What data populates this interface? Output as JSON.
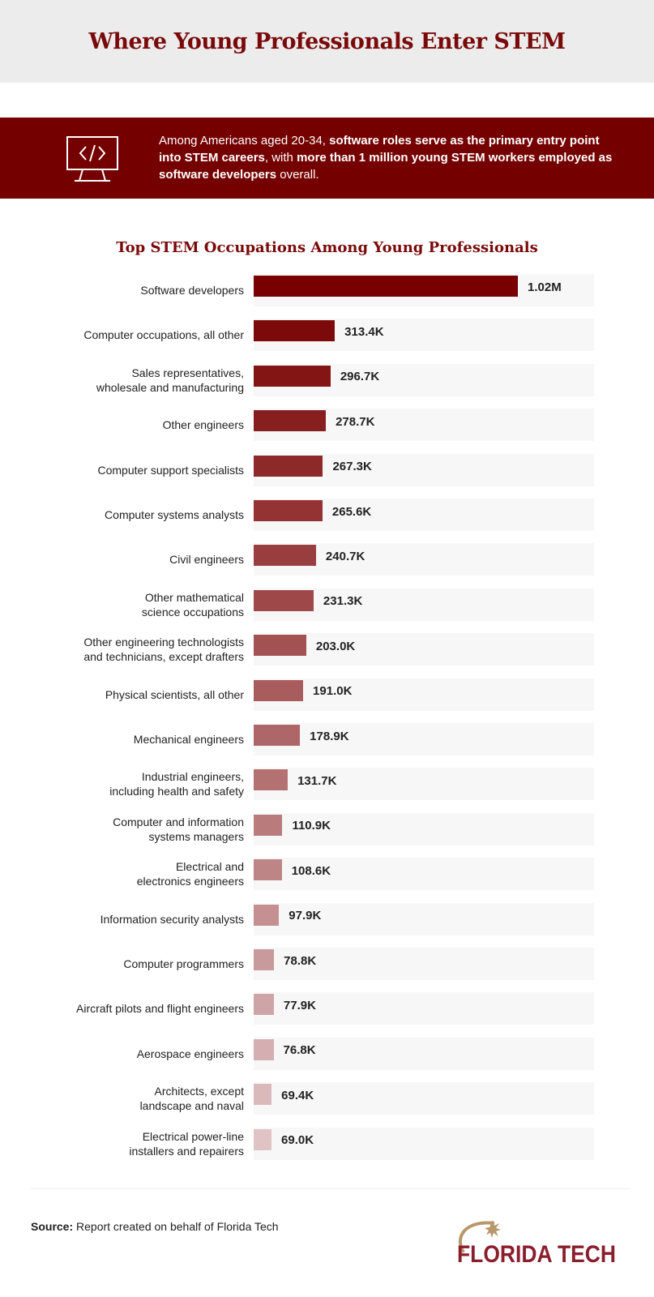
{
  "header": {
    "title": "Where Young Professionals Enter STEM"
  },
  "callout": {
    "icon": "computer-code-icon",
    "parts": [
      {
        "text": "Among Americans aged 20-34, ",
        "bold": false
      },
      {
        "text": "software roles serve as the primary entry point into STEM careers",
        "bold": true
      },
      {
        "text": ", with ",
        "bold": false
      },
      {
        "text": "more than 1 million young STEM workers employed as software developers",
        "bold": true
      },
      {
        "text": " overall.",
        "bold": false
      }
    ]
  },
  "colors": {
    "brand": "#750000",
    "bar_start": "#780000",
    "bar_end": "#dfc3c5",
    "gold": "#b8976a"
  },
  "chart_data": {
    "type": "bar",
    "orientation": "horizontal",
    "title": "Top STEM Occupations Among Young Professionals",
    "categories": [
      "Software developers",
      "Computer occupations, all other",
      "Sales representatives, wholesale and manufacturing",
      "Other engineers",
      "Computer support specialists",
      "Computer systems analysts",
      "Civil engineers",
      "Other mathematical science occupations",
      "Other engineering technologists and technicians, except drafters",
      "Physical scientists, all other",
      "Mechanical engineers",
      "Industrial engineers, including health and safety",
      "Computer and information systems managers",
      "Electrical and electronics engineers",
      "Information security analysts",
      "Computer programmers",
      "Aircraft pilots and flight engineers",
      "Aerospace engineers",
      "Architects, except landscape and naval",
      "Electrical power-line installers and repairers"
    ],
    "label_lines": [
      [
        "Software developers"
      ],
      [
        "Computer occupations, all other"
      ],
      [
        "Sales representatives,",
        "wholesale and manufacturing"
      ],
      [
        "Other engineers"
      ],
      [
        "Computer support specialists"
      ],
      [
        "Computer systems analysts"
      ],
      [
        "Civil engineers"
      ],
      [
        "Other mathematical",
        "science occupations"
      ],
      [
        "Other engineering technologists",
        "and technicians, except drafters"
      ],
      [
        "Physical scientists, all other"
      ],
      [
        "Mechanical engineers"
      ],
      [
        "Industrial engineers,",
        "including health and safety"
      ],
      [
        "Computer and information",
        "systems managers"
      ],
      [
        "Electrical and",
        "electronics engineers"
      ],
      [
        "Information security analysts"
      ],
      [
        "Computer programmers"
      ],
      [
        "Aircraft pilots and flight engineers"
      ],
      [
        "Aerospace engineers"
      ],
      [
        "Architects, except",
        "landscape and naval"
      ],
      [
        "Electrical power-line",
        "installers and repairers"
      ]
    ],
    "values": [
      1020000,
      313400,
      296700,
      278700,
      267300,
      265600,
      240700,
      231300,
      203000,
      191000,
      178900,
      131700,
      110900,
      108600,
      97900,
      78800,
      77900,
      76800,
      69400,
      69000
    ],
    "data_labels": [
      "1.02M",
      "313.4K",
      "296.7K",
      "278.7K",
      "267.3K",
      "265.6K",
      "240.7K",
      "231.3K",
      "203.0K",
      "191.0K",
      "178.9K",
      "131.7K",
      "110.9K",
      "108.6K",
      "97.9K",
      "78.8K",
      "77.9K",
      "76.8K",
      "69.4K",
      "69.0K"
    ],
    "xlim": [
      0,
      1314000
    ],
    "grid": false
  },
  "footer": {
    "source_label": "Source:",
    "source_text": " Report created on behalf of Florida Tech",
    "logo_text": "FLORIDA TECH"
  }
}
